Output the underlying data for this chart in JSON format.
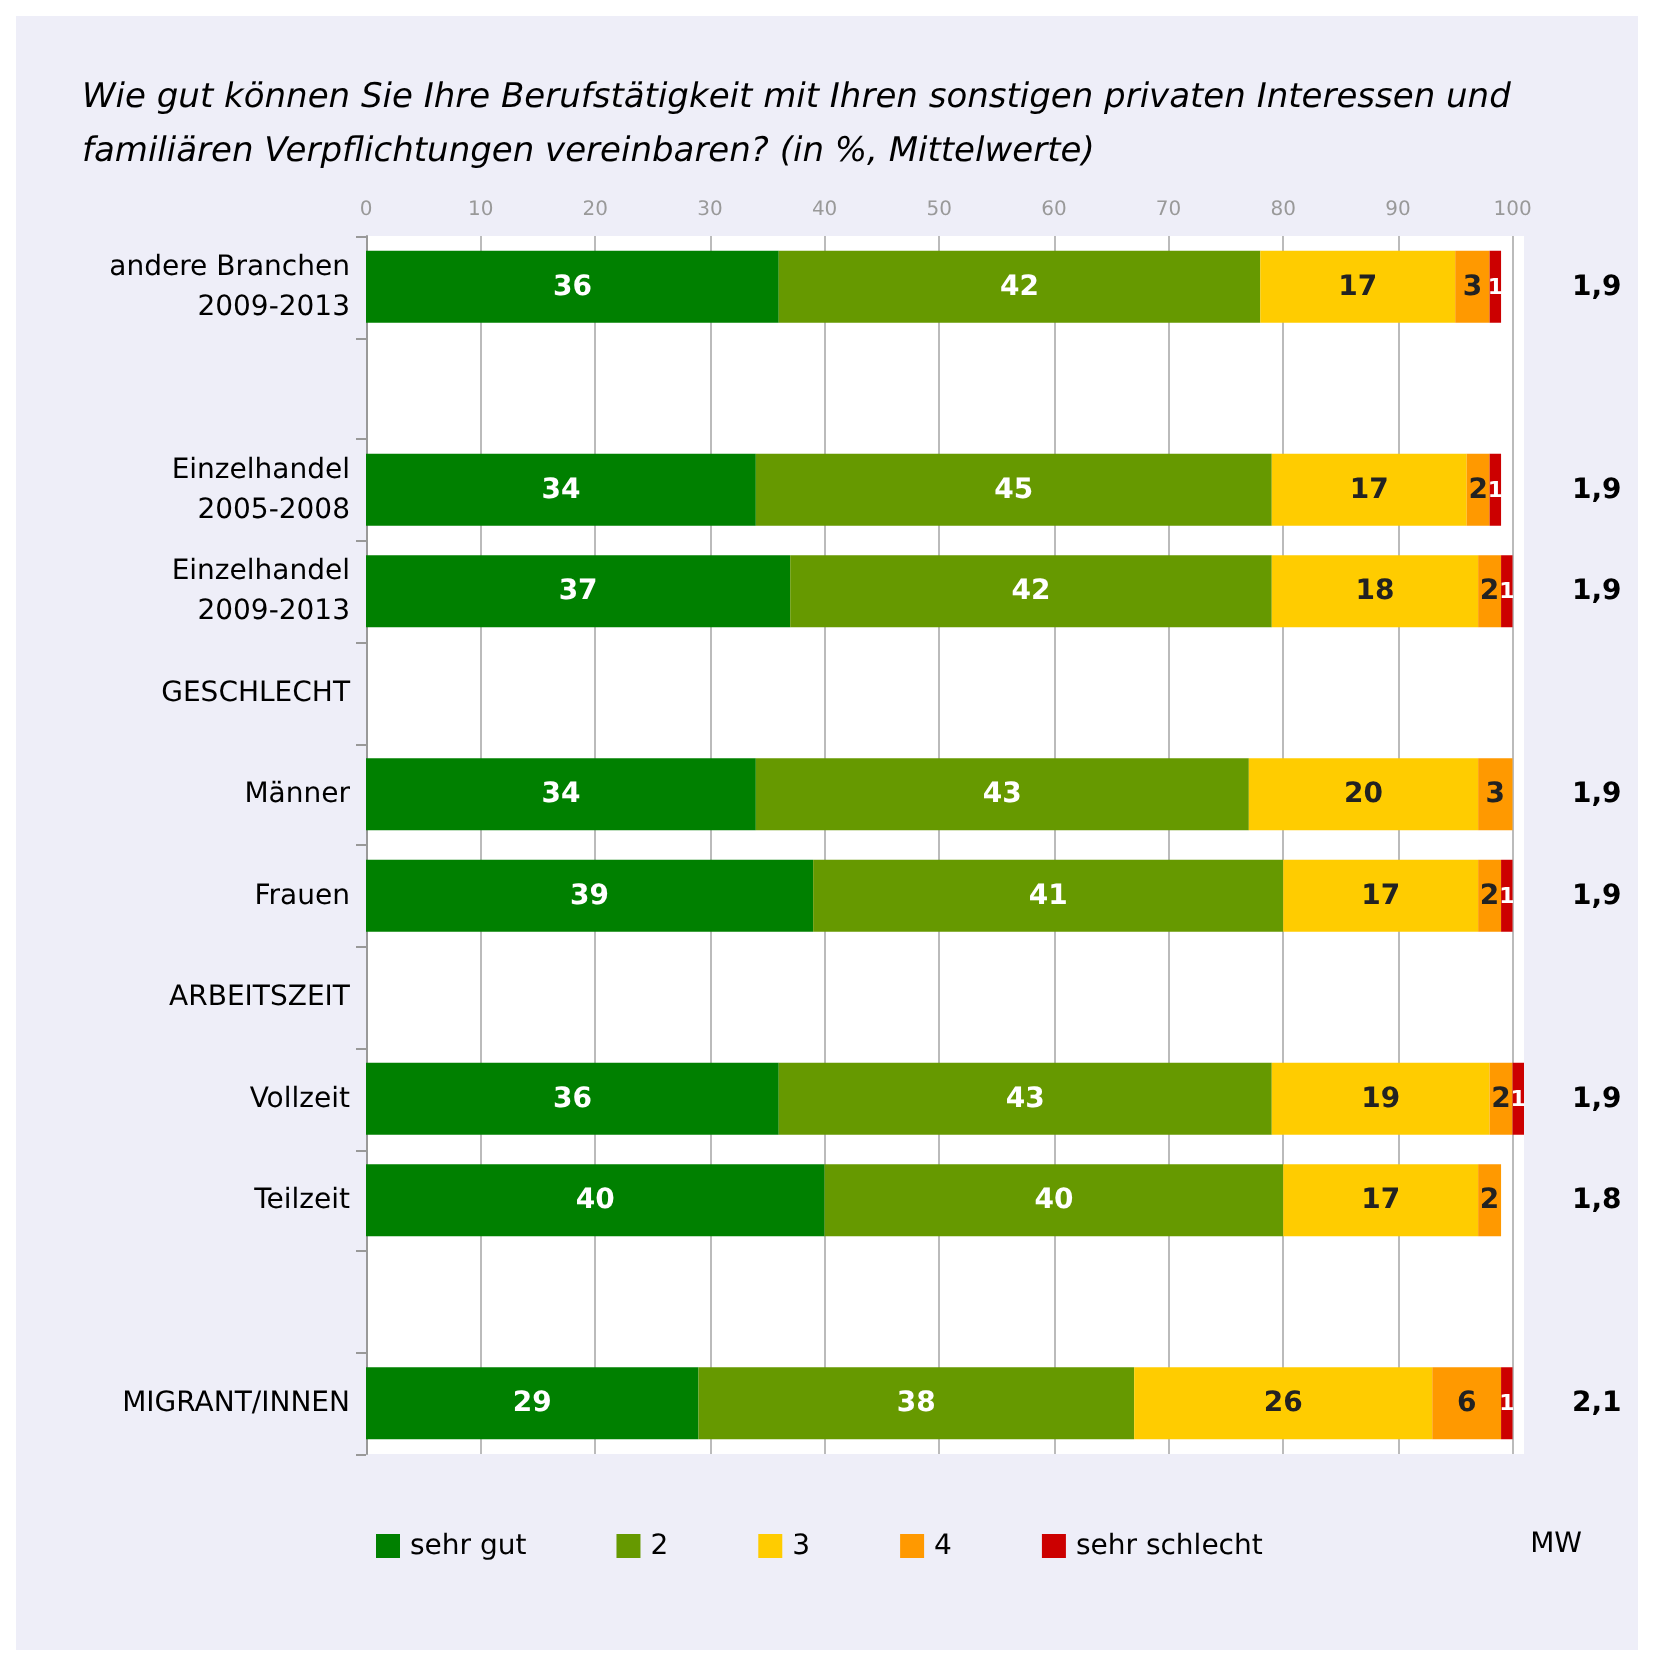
{
  "chart_data": {
    "type": "bar",
    "orientation": "horizontal",
    "stacked": true,
    "title": "Wie gut können Sie Ihre Berufstätigkeit mit Ihren sonstigen privaten Interessen und\nfamiliären Verpflichtungen vereinbaren? (in %, Mittelwerte)",
    "categories": [
      "andere Branchen\n2009-2013",
      null,
      "Einzelhandel\n2005-2008",
      "Einzelhandel\n2009-2013",
      "GESCHLECHT",
      "Männer",
      "Frauen",
      "ARBEITSZEIT",
      "Vollzeit",
      "Teilzeit",
      null,
      "MIGRANT/INNEN"
    ],
    "series": [
      {
        "name": "sehr gut",
        "color": "#008000",
        "values": [
          36,
          null,
          34,
          37,
          null,
          34,
          39,
          null,
          36,
          40,
          null,
          29
        ]
      },
      {
        "name": "2",
        "color": "#669900",
        "values": [
          42,
          null,
          45,
          42,
          null,
          43,
          41,
          null,
          43,
          40,
          null,
          38
        ]
      },
      {
        "name": "3",
        "color": "#ffcc00",
        "values": [
          17,
          null,
          17,
          18,
          null,
          20,
          17,
          null,
          19,
          17,
          null,
          26
        ]
      },
      {
        "name": "4",
        "color": "#ff9900",
        "values": [
          3,
          null,
          2,
          2,
          null,
          3,
          2,
          null,
          2,
          2,
          null,
          6
        ]
      },
      {
        "name": "sehr schlecht",
        "color": "#cc0000",
        "values": [
          1,
          null,
          1,
          1,
          null,
          null,
          1,
          null,
          1,
          null,
          null,
          1
        ]
      }
    ],
    "xlim": [
      0,
      101
    ],
    "xticks": [
      0,
      10,
      20,
      30,
      40,
      50,
      60,
      70,
      80,
      90,
      100
    ],
    "grid": "x",
    "legend": "bottom",
    "data_labels": true,
    "annotations": [
      "MW",
      "1,9",
      "1,9",
      "1,9",
      "1,9",
      "1,9",
      "1,9",
      "1,8",
      "2,1"
    ]
  }
}
